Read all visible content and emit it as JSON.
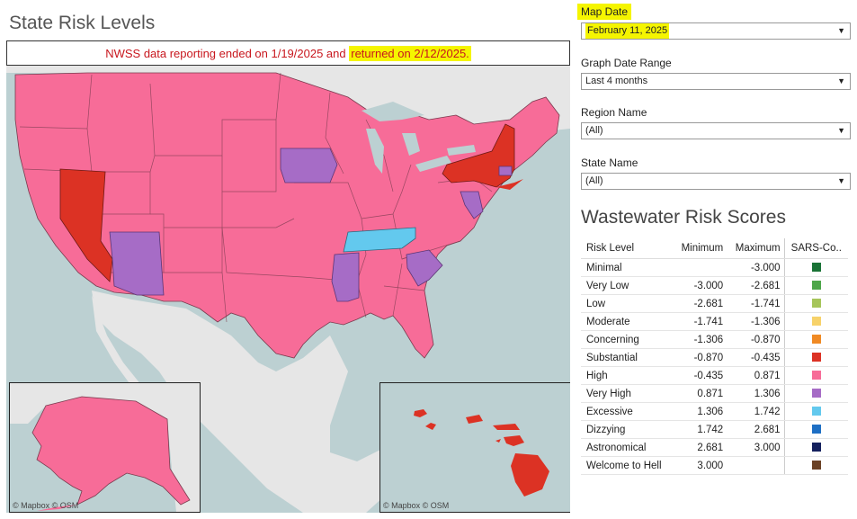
{
  "header": {
    "title": "State Risk Levels"
  },
  "notice": {
    "text_a": "NWSS data reporting ended on 1/19/2025 and ",
    "text_b": "returned on 2/12/2025."
  },
  "map": {
    "attribution_a": "© Mapbox",
    "attribution_b": "© OSM"
  },
  "controls": {
    "map_date": {
      "label": "Map Date",
      "value": "February 11, 2025"
    },
    "graph_range": {
      "label": "Graph Date Range",
      "value": "Last 4 months"
    },
    "region": {
      "label": "Region Name",
      "value": "(All)"
    },
    "state": {
      "label": "State Name",
      "value": "(All)"
    }
  },
  "legend": {
    "title": "Wastewater Risk Scores",
    "columns": [
      "Risk Level",
      "Minimum",
      "Maximum",
      "SARS-Co.."
    ],
    "rows": [
      {
        "level": "Minimal",
        "min": "",
        "max": "-3.000",
        "color": "#1a7336"
      },
      {
        "level": "Very Low",
        "min": "-3.000",
        "max": "-2.681",
        "color": "#4ea64a"
      },
      {
        "level": "Low",
        "min": "-2.681",
        "max": "-1.741",
        "color": "#a6c55a"
      },
      {
        "level": "Moderate",
        "min": "-1.741",
        "max": "-1.306",
        "color": "#f7d26a"
      },
      {
        "level": "Concerning",
        "min": "-1.306",
        "max": "-0.870",
        "color": "#f08a24"
      },
      {
        "level": "Substantial",
        "min": "-0.870",
        "max": "-0.435",
        "color": "#dc3224"
      },
      {
        "level": "High",
        "min": "-0.435",
        "max": "0.871",
        "color": "#f76c98"
      },
      {
        "level": "Very High",
        "min": "0.871",
        "max": "1.306",
        "color": "#a66cc6"
      },
      {
        "level": "Excessive",
        "min": "1.306",
        "max": "1.742",
        "color": "#63c9ee"
      },
      {
        "level": "Dizzying",
        "min": "1.742",
        "max": "2.681",
        "color": "#1e6fc4"
      },
      {
        "level": "Astronomical",
        "min": "2.681",
        "max": "3.000",
        "color": "#15215e"
      },
      {
        "level": "Welcome to Hell",
        "min": "3.000",
        "max": "",
        "color": "#6b4226"
      }
    ]
  },
  "colors": {
    "high": "#f76c98",
    "substantial": "#dc3224",
    "very_high": "#a66cc6",
    "excessive": "#63c9ee",
    "no_data": "#e2e2e2",
    "water": "#bcd0d2",
    "land": "#ebebeb"
  }
}
